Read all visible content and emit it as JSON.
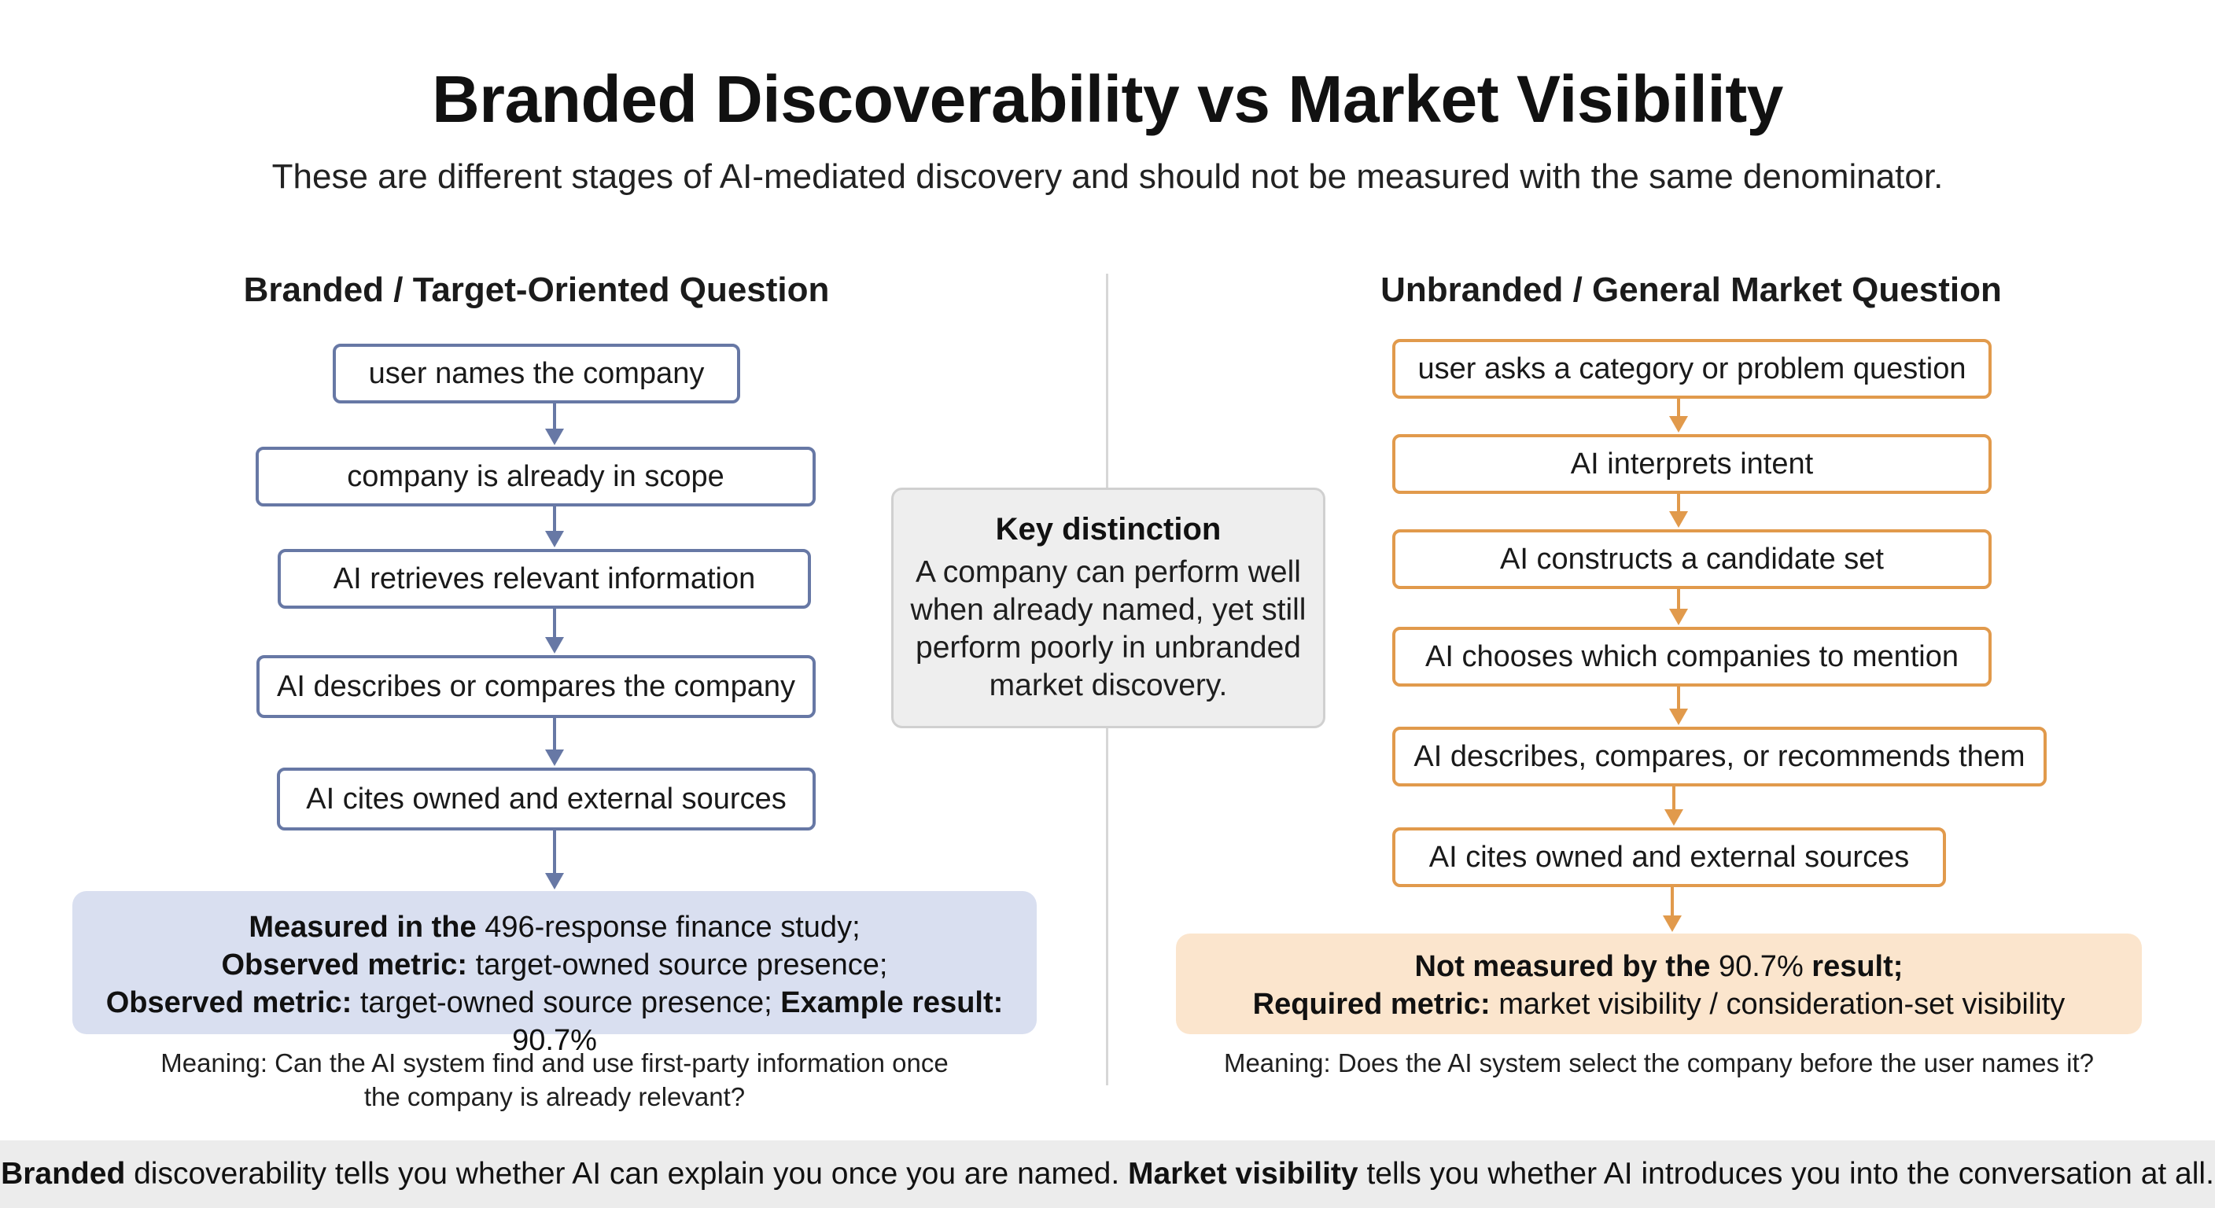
{
  "title": "Branded Discoverability vs Market Visibility",
  "subtitle": "These are different stages of AI-mediated discovery and should not be measured with the same denominator.",
  "left": {
    "heading": "Branded / Target-Oriented Question",
    "steps": [
      "user names the company",
      "company is already in scope",
      "AI retrieves relevant information",
      "AI describes or compares the company",
      "AI cites owned and external sources"
    ],
    "result": {
      "line1_bold": "Measured in the",
      "line1_rest": " 496-response finance study;",
      "line2_bold": "Observed metric:",
      "line2_rest": " target-owned source presence;",
      "line3_bold": "Observed metric:",
      "line3_mid": " target-owned source presence; ",
      "line3_bold2": "Example result:",
      "line3_rest": " 90.7%"
    },
    "meaning": "Meaning: Can the AI system find and use first-party information once the company is already relevant?"
  },
  "key": {
    "title": "Key distinction",
    "body": "A company can perform well when already named, yet still perform poorly in unbranded market discovery."
  },
  "right": {
    "heading": "Unbranded / General Market Question",
    "steps": [
      "user asks a category or problem question",
      "AI interprets intent",
      "AI constructs a candidate set",
      "AI chooses which companies to mention",
      "AI describes, compares, or recommends them",
      "AI cites owned and external sources"
    ],
    "result": {
      "line1_bold": "Not measured by the",
      "line1_rest": " 90.7%",
      "line1_bold2": " result;",
      "line2_bold": "Required metric:",
      "line2_rest": " market visibility / consideration-set visibility"
    },
    "meaning": "Meaning: Does the AI system select the company before the user names it?"
  },
  "footer": {
    "bold1": "Branded",
    "text1": " discoverability tells you whether AI can explain you once you are named. ",
    "bold2": "Market visibility",
    "text2": " tells you whether AI introduces you into the conversation at all."
  },
  "colors": {
    "left_accent": "#6778a5",
    "right_accent": "#e19a4c",
    "left_result_bg": "#d9dff0",
    "right_result_bg": "#fbe5cd",
    "footer_bg": "#ececec"
  }
}
